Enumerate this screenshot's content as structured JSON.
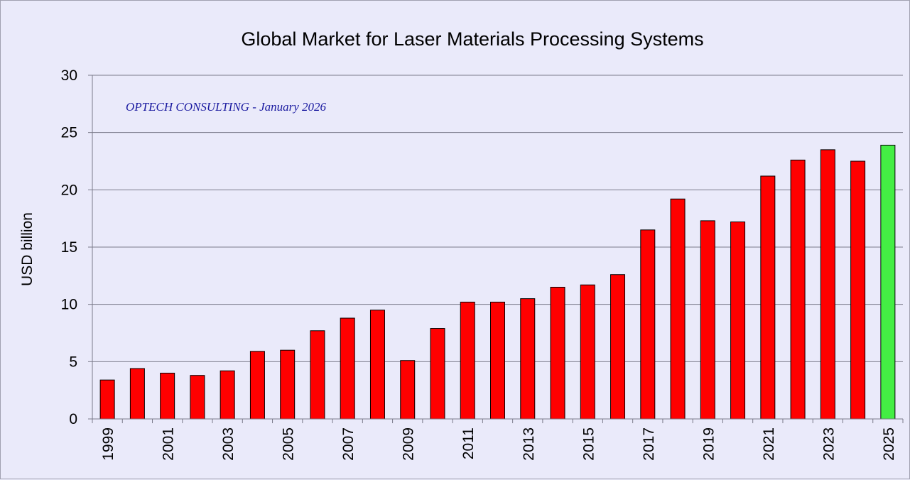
{
  "chart_data": {
    "type": "bar",
    "title": "Global Market for Laser Materials Processing Systems",
    "ylabel": "USD billion",
    "xlabel": "",
    "annotation": "OPTECH CONSULTING - January 2026",
    "ylim": [
      0,
      30
    ],
    "yticks": [
      0,
      5,
      10,
      15,
      20,
      25,
      30
    ],
    "grid": true,
    "legend": "none",
    "categories": [
      "1999",
      "2000",
      "2001",
      "2002",
      "2003",
      "2004",
      "2005",
      "2006",
      "2007",
      "2008",
      "2009",
      "2010",
      "2011",
      "2012",
      "2013",
      "2014",
      "2015",
      "2016",
      "2017",
      "2018",
      "2019",
      "2020",
      "2021",
      "2022",
      "2023",
      "2024",
      "2025"
    ],
    "xtick_labels": [
      "1999",
      "",
      "2001",
      "",
      "2003",
      "",
      "2005",
      "",
      "2007",
      "",
      "2009",
      "",
      "2011",
      "",
      "2013",
      "",
      "2015",
      "",
      "2017",
      "",
      "2019",
      "",
      "2021",
      "",
      "2023",
      "",
      "2025"
    ],
    "values": [
      3.4,
      4.4,
      4.0,
      3.8,
      4.2,
      5.9,
      6.0,
      7.7,
      8.8,
      9.5,
      5.1,
      7.9,
      10.2,
      10.2,
      10.5,
      11.5,
      11.7,
      12.6,
      16.5,
      19.2,
      17.3,
      17.2,
      21.2,
      22.6,
      23.5,
      22.5,
      23.9
    ],
    "colors": {
      "bar": "#FF0000",
      "highlight_bar": "#44EE44",
      "bar_outline": "#000000",
      "grid": "#7A7A8A",
      "background": "#EAEAFA",
      "annotation": "#1A1AA0"
    },
    "highlight_index": 26
  }
}
